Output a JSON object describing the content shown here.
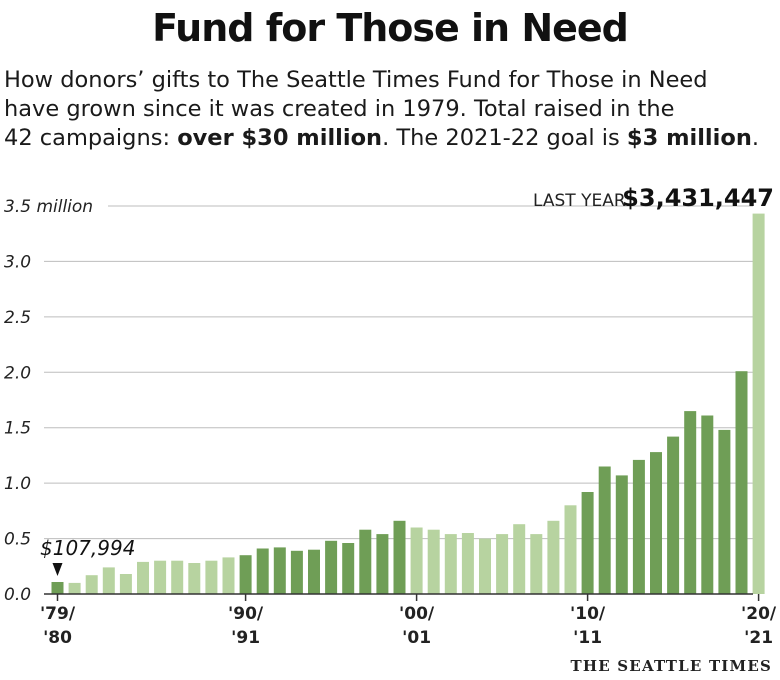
{
  "header": {
    "title": "Fund for Those in Need",
    "subtitle_line1": "How donors’ gifts to The Seattle Times Fund for Those in Need",
    "subtitle_line2": "have grown since it was created in 1979. Total raised in the",
    "subtitle_line3_a": "42 campaigns: ",
    "subtitle_line3_b": "over $30 million",
    "subtitle_line3_c": ". The 2021-22 goal is ",
    "subtitle_line3_d": "$3 million",
    "subtitle_line3_e": "."
  },
  "credit": "THE SEATTLE TIMES",
  "colors": {
    "dark_green": "#6f9e56",
    "light_green": "#b7d3a0",
    "grid": "#bdbdbd",
    "axis": "#333333"
  },
  "chart_data": {
    "type": "bar",
    "title": "Fund for Those in Need",
    "ylim": [
      0,
      3.5
    ],
    "yticks": [
      {
        "value": 0,
        "label": "0.0"
      },
      {
        "value": 0.5,
        "label": "0.5"
      },
      {
        "value": 1.0,
        "label": "1.0"
      },
      {
        "value": 1.5,
        "label": "1.5"
      },
      {
        "value": 2.0,
        "label": "2.0"
      },
      {
        "value": 2.5,
        "label": "2.5"
      },
      {
        "value": 3.0,
        "label": "3.0"
      },
      {
        "value": 3.5,
        "label": "3.5 million"
      }
    ],
    "xtick_labels": [
      {
        "index": 0,
        "line1": "'79/",
        "line2": "'80"
      },
      {
        "index": 11,
        "line1": "'90/",
        "line2": "'91"
      },
      {
        "index": 21,
        "line1": "'00/",
        "line2": "'01"
      },
      {
        "index": 31,
        "line1": "'10/",
        "line2": "'11"
      },
      {
        "index": 41,
        "line1": "'20/",
        "line2": "'21"
      }
    ],
    "values": [
      0.108,
      0.1,
      0.17,
      0.24,
      0.18,
      0.29,
      0.3,
      0.3,
      0.28,
      0.3,
      0.33,
      0.35,
      0.41,
      0.42,
      0.39,
      0.4,
      0.48,
      0.46,
      0.58,
      0.54,
      0.66,
      0.6,
      0.58,
      0.54,
      0.55,
      0.5,
      0.54,
      0.63,
      0.54,
      0.66,
      0.8,
      0.92,
      1.15,
      1.07,
      1.21,
      1.28,
      1.42,
      1.65,
      1.61,
      1.48,
      2.01,
      3.431447
    ],
    "shade": [
      "d",
      "l",
      "l",
      "l",
      "l",
      "l",
      "l",
      "l",
      "l",
      "l",
      "l",
      "d",
      "d",
      "d",
      "d",
      "d",
      "d",
      "d",
      "d",
      "d",
      "d",
      "l",
      "l",
      "l",
      "l",
      "l",
      "l",
      "l",
      "l",
      "l",
      "l",
      "d",
      "d",
      "d",
      "d",
      "d",
      "d",
      "d",
      "d",
      "d",
      "d",
      "l"
    ],
    "annotations": {
      "first_value": "$107,994",
      "last_label": "LAST YEAR:",
      "last_value": "$3,431,447"
    }
  }
}
